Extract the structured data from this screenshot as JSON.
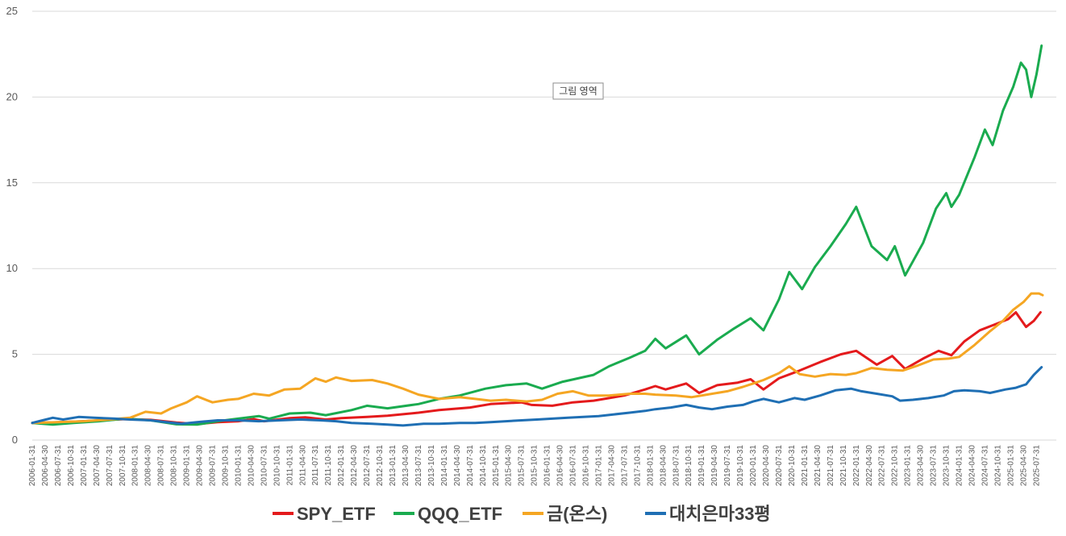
{
  "chart_data": {
    "type": "line",
    "title": "",
    "xlabel": "",
    "ylabel": "",
    "ylim": [
      0,
      25
    ],
    "yticks": [
      0,
      5,
      10,
      15,
      20,
      25
    ],
    "grid": "horizontal",
    "legend_position": "bottom",
    "x_start": "2006-01-31",
    "x_end": "2025-07-31",
    "x_tick_step_months": 3,
    "x_ticks": [
      "2006-01-31",
      "2006-04-30",
      "2006-07-31",
      "2006-10-31",
      "2007-01-31",
      "2007-04-30",
      "2007-07-31",
      "2007-10-31",
      "2008-01-31",
      "2008-04-30",
      "2008-07-31",
      "2008-10-31",
      "2009-01-31",
      "2009-04-30",
      "2009-07-31",
      "2009-10-31",
      "2010-01-31",
      "2010-04-30",
      "2010-07-31",
      "2010-10-31",
      "2011-01-31",
      "2011-04-30",
      "2011-07-31",
      "2011-10-31",
      "2012-01-31",
      "2012-04-30",
      "2012-07-31",
      "2012-10-31",
      "2013-01-31",
      "2013-04-30",
      "2013-07-31",
      "2013-10-31",
      "2014-01-31",
      "2014-04-30",
      "2014-07-31",
      "2014-10-31",
      "2015-01-31",
      "2015-04-30",
      "2015-07-31",
      "2015-10-31",
      "2016-01-31",
      "2016-04-30",
      "2016-07-31",
      "2016-10-31",
      "2017-01-31",
      "2017-04-30",
      "2017-07-31",
      "2017-10-31",
      "2018-01-31",
      "2018-04-30",
      "2018-07-31",
      "2018-10-31",
      "2019-01-31",
      "2019-04-30",
      "2019-07-31",
      "2019-10-31",
      "2020-01-31",
      "2020-04-30",
      "2020-07-31",
      "2020-10-31",
      "2021-01-31",
      "2021-04-30",
      "2021-07-31",
      "2021-10-31",
      "2022-01-31",
      "2022-04-30",
      "2022-07-31",
      "2022-10-31",
      "2023-01-31",
      "2023-04-30",
      "2023-07-31",
      "2023-10-31",
      "2024-01-31",
      "2024-04-30",
      "2024-07-31",
      "2024-10-31",
      "2025-01-31",
      "2025-04-30",
      "2025-07-31"
    ],
    "series": [
      {
        "name": "SPY_ETF",
        "color": "#e41a1c",
        "values": [
          [
            2006.0,
            1.0
          ],
          [
            2006.5,
            1.04
          ],
          [
            2007.0,
            1.1
          ],
          [
            2007.5,
            1.18
          ],
          [
            2007.8,
            1.22
          ],
          [
            2008.3,
            1.18
          ],
          [
            2008.8,
            1.02
          ],
          [
            2009.2,
            0.93
          ],
          [
            2009.6,
            1.05
          ],
          [
            2010.0,
            1.1
          ],
          [
            2010.3,
            1.22
          ],
          [
            2010.5,
            1.1
          ],
          [
            2011.0,
            1.28
          ],
          [
            2011.3,
            1.33
          ],
          [
            2011.7,
            1.2
          ],
          [
            2012.0,
            1.28
          ],
          [
            2012.5,
            1.35
          ],
          [
            2012.9,
            1.42
          ],
          [
            2013.5,
            1.6
          ],
          [
            2013.9,
            1.75
          ],
          [
            2014.5,
            1.9
          ],
          [
            2014.9,
            2.1
          ],
          [
            2015.5,
            2.2
          ],
          [
            2015.7,
            2.05
          ],
          [
            2016.1,
            2.0
          ],
          [
            2016.5,
            2.2
          ],
          [
            2016.9,
            2.3
          ],
          [
            2017.5,
            2.6
          ],
          [
            2017.9,
            2.95
          ],
          [
            2018.1,
            3.15
          ],
          [
            2018.3,
            2.95
          ],
          [
            2018.7,
            3.3
          ],
          [
            2018.95,
            2.75
          ],
          [
            2019.3,
            3.2
          ],
          [
            2019.7,
            3.35
          ],
          [
            2019.95,
            3.55
          ],
          [
            2020.2,
            2.95
          ],
          [
            2020.5,
            3.6
          ],
          [
            2020.9,
            4.05
          ],
          [
            2021.3,
            4.55
          ],
          [
            2021.7,
            5.0
          ],
          [
            2022.0,
            5.2
          ],
          [
            2022.4,
            4.4
          ],
          [
            2022.7,
            4.9
          ],
          [
            2022.95,
            4.15
          ],
          [
            2023.3,
            4.75
          ],
          [
            2023.6,
            5.2
          ],
          [
            2023.85,
            4.95
          ],
          [
            2024.1,
            5.75
          ],
          [
            2024.4,
            6.4
          ],
          [
            2024.7,
            6.75
          ],
          [
            2024.95,
            7.05
          ],
          [
            2025.1,
            7.45
          ],
          [
            2025.3,
            6.6
          ],
          [
            2025.45,
            6.95
          ],
          [
            2025.58,
            7.45
          ]
        ]
      },
      {
        "name": "QQQ_ETF",
        "color": "#1aab4f",
        "values": [
          [
            2006.0,
            1.0
          ],
          [
            2006.4,
            0.9
          ],
          [
            2006.8,
            1.0
          ],
          [
            2007.3,
            1.1
          ],
          [
            2007.8,
            1.25
          ],
          [
            2008.3,
            1.15
          ],
          [
            2008.8,
            0.92
          ],
          [
            2009.2,
            0.9
          ],
          [
            2009.6,
            1.1
          ],
          [
            2010.0,
            1.25
          ],
          [
            2010.4,
            1.4
          ],
          [
            2010.6,
            1.25
          ],
          [
            2011.0,
            1.55
          ],
          [
            2011.4,
            1.6
          ],
          [
            2011.7,
            1.45
          ],
          [
            2012.2,
            1.75
          ],
          [
            2012.5,
            2.0
          ],
          [
            2012.9,
            1.85
          ],
          [
            2013.5,
            2.1
          ],
          [
            2013.9,
            2.4
          ],
          [
            2014.3,
            2.6
          ],
          [
            2014.8,
            3.0
          ],
          [
            2015.2,
            3.2
          ],
          [
            2015.6,
            3.3
          ],
          [
            2015.9,
            3.0
          ],
          [
            2016.3,
            3.4
          ],
          [
            2016.6,
            3.6
          ],
          [
            2016.9,
            3.8
          ],
          [
            2017.2,
            4.3
          ],
          [
            2017.6,
            4.8
          ],
          [
            2017.9,
            5.2
          ],
          [
            2018.1,
            5.9
          ],
          [
            2018.3,
            5.35
          ],
          [
            2018.7,
            6.1
          ],
          [
            2018.95,
            5.0
          ],
          [
            2019.3,
            5.85
          ],
          [
            2019.6,
            6.45
          ],
          [
            2019.95,
            7.1
          ],
          [
            2020.2,
            6.4
          ],
          [
            2020.5,
            8.2
          ],
          [
            2020.7,
            9.8
          ],
          [
            2020.95,
            8.8
          ],
          [
            2021.2,
            10.1
          ],
          [
            2021.5,
            11.3
          ],
          [
            2021.8,
            12.6
          ],
          [
            2022.0,
            13.6
          ],
          [
            2022.3,
            11.3
          ],
          [
            2022.6,
            10.5
          ],
          [
            2022.75,
            11.3
          ],
          [
            2022.95,
            9.6
          ],
          [
            2023.3,
            11.5
          ],
          [
            2023.55,
            13.5
          ],
          [
            2023.75,
            14.4
          ],
          [
            2023.85,
            13.6
          ],
          [
            2024.0,
            14.3
          ],
          [
            2024.3,
            16.5
          ],
          [
            2024.5,
            18.1
          ],
          [
            2024.65,
            17.2
          ],
          [
            2024.85,
            19.2
          ],
          [
            2025.05,
            20.6
          ],
          [
            2025.2,
            22.0
          ],
          [
            2025.3,
            21.6
          ],
          [
            2025.4,
            20.0
          ],
          [
            2025.5,
            21.3
          ],
          [
            2025.6,
            23.0
          ]
        ]
      },
      {
        "name": "금(온스)",
        "color": "#f5a623",
        "values": [
          [
            2006.0,
            1.0
          ],
          [
            2006.5,
            1.05
          ],
          [
            2007.0,
            1.1
          ],
          [
            2007.5,
            1.2
          ],
          [
            2007.9,
            1.3
          ],
          [
            2008.2,
            1.65
          ],
          [
            2008.5,
            1.55
          ],
          [
            2008.7,
            1.85
          ],
          [
            2009.0,
            2.2
          ],
          [
            2009.2,
            2.55
          ],
          [
            2009.5,
            2.2
          ],
          [
            2009.8,
            2.35
          ],
          [
            2010.0,
            2.4
          ],
          [
            2010.3,
            2.7
          ],
          [
            2010.6,
            2.6
          ],
          [
            2010.9,
            2.95
          ],
          [
            2011.2,
            3.0
          ],
          [
            2011.5,
            3.6
          ],
          [
            2011.7,
            3.4
          ],
          [
            2011.9,
            3.65
          ],
          [
            2012.2,
            3.45
          ],
          [
            2012.6,
            3.5
          ],
          [
            2012.9,
            3.3
          ],
          [
            2013.2,
            3.0
          ],
          [
            2013.5,
            2.65
          ],
          [
            2013.9,
            2.4
          ],
          [
            2014.3,
            2.5
          ],
          [
            2014.6,
            2.4
          ],
          [
            2014.9,
            2.3
          ],
          [
            2015.2,
            2.35
          ],
          [
            2015.6,
            2.25
          ],
          [
            2015.9,
            2.35
          ],
          [
            2016.2,
            2.7
          ],
          [
            2016.5,
            2.85
          ],
          [
            2016.8,
            2.6
          ],
          [
            2017.2,
            2.6
          ],
          [
            2017.6,
            2.7
          ],
          [
            2017.9,
            2.7
          ],
          [
            2018.1,
            2.65
          ],
          [
            2018.5,
            2.6
          ],
          [
            2018.8,
            2.5
          ],
          [
            2019.1,
            2.65
          ],
          [
            2019.5,
            2.85
          ],
          [
            2019.8,
            3.1
          ],
          [
            2020.0,
            3.3
          ],
          [
            2020.2,
            3.5
          ],
          [
            2020.5,
            3.9
          ],
          [
            2020.7,
            4.3
          ],
          [
            2020.9,
            3.85
          ],
          [
            2021.2,
            3.7
          ],
          [
            2021.5,
            3.85
          ],
          [
            2021.8,
            3.8
          ],
          [
            2022.0,
            3.9
          ],
          [
            2022.3,
            4.2
          ],
          [
            2022.6,
            4.1
          ],
          [
            2022.9,
            4.05
          ],
          [
            2023.2,
            4.35
          ],
          [
            2023.5,
            4.7
          ],
          [
            2023.8,
            4.75
          ],
          [
            2024.0,
            4.85
          ],
          [
            2024.3,
            5.55
          ],
          [
            2024.6,
            6.35
          ],
          [
            2024.85,
            6.95
          ],
          [
            2025.05,
            7.6
          ],
          [
            2025.25,
            8.05
          ],
          [
            2025.4,
            8.55
          ],
          [
            2025.55,
            8.55
          ],
          [
            2025.62,
            8.45
          ]
        ]
      },
      {
        "name": "대치은마33평",
        "color": "#1f6fb4",
        "values": [
          [
            2006.0,
            1.0
          ],
          [
            2006.2,
            1.15
          ],
          [
            2006.4,
            1.3
          ],
          [
            2006.6,
            1.2
          ],
          [
            2006.9,
            1.35
          ],
          [
            2007.2,
            1.3
          ],
          [
            2007.6,
            1.25
          ],
          [
            2007.9,
            1.2
          ],
          [
            2008.3,
            1.15
          ],
          [
            2008.6,
            1.05
          ],
          [
            2008.9,
            0.95
          ],
          [
            2009.2,
            1.05
          ],
          [
            2009.6,
            1.15
          ],
          [
            2010.0,
            1.15
          ],
          [
            2010.4,
            1.1
          ],
          [
            2010.8,
            1.15
          ],
          [
            2011.2,
            1.2
          ],
          [
            2011.6,
            1.15
          ],
          [
            2011.9,
            1.1
          ],
          [
            2012.2,
            1.0
          ],
          [
            2012.6,
            0.95
          ],
          [
            2012.9,
            0.9
          ],
          [
            2013.2,
            0.85
          ],
          [
            2013.6,
            0.95
          ],
          [
            2013.9,
            0.95
          ],
          [
            2014.3,
            1.0
          ],
          [
            2014.6,
            1.0
          ],
          [
            2014.9,
            1.05
          ],
          [
            2015.2,
            1.1
          ],
          [
            2015.5,
            1.15
          ],
          [
            2015.8,
            1.2
          ],
          [
            2016.1,
            1.25
          ],
          [
            2016.4,
            1.3
          ],
          [
            2016.7,
            1.35
          ],
          [
            2017.0,
            1.4
          ],
          [
            2017.3,
            1.5
          ],
          [
            2017.6,
            1.6
          ],
          [
            2017.9,
            1.7
          ],
          [
            2018.1,
            1.8
          ],
          [
            2018.4,
            1.9
          ],
          [
            2018.7,
            2.05
          ],
          [
            2018.95,
            1.9
          ],
          [
            2019.2,
            1.8
          ],
          [
            2019.5,
            1.95
          ],
          [
            2019.8,
            2.05
          ],
          [
            2020.0,
            2.25
          ],
          [
            2020.2,
            2.4
          ],
          [
            2020.5,
            2.2
          ],
          [
            2020.8,
            2.45
          ],
          [
            2021.0,
            2.35
          ],
          [
            2021.3,
            2.6
          ],
          [
            2021.6,
            2.9
          ],
          [
            2021.9,
            3.0
          ],
          [
            2022.1,
            2.85
          ],
          [
            2022.4,
            2.7
          ],
          [
            2022.7,
            2.55
          ],
          [
            2022.85,
            2.3
          ],
          [
            2023.1,
            2.35
          ],
          [
            2023.4,
            2.45
          ],
          [
            2023.7,
            2.6
          ],
          [
            2023.9,
            2.85
          ],
          [
            2024.1,
            2.9
          ],
          [
            2024.4,
            2.85
          ],
          [
            2024.6,
            2.75
          ],
          [
            2024.9,
            2.95
          ],
          [
            2025.1,
            3.05
          ],
          [
            2025.3,
            3.25
          ],
          [
            2025.45,
            3.8
          ],
          [
            2025.6,
            4.25
          ]
        ]
      }
    ]
  },
  "tooltip": {
    "label": "그림 영역"
  }
}
